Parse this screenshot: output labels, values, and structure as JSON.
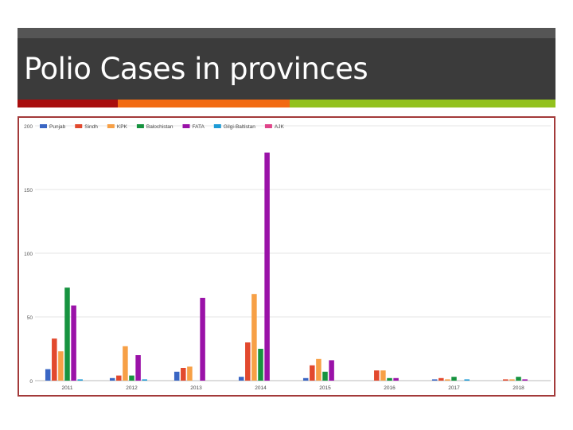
{
  "slide": {
    "title": "Polio Cases in provinces",
    "accent_colors": [
      "#a80d0d",
      "#f26a12",
      "#92c11d"
    ]
  },
  "chart_data": {
    "type": "bar",
    "title": "",
    "xlabel": "",
    "ylabel": "",
    "ylim": [
      0,
      200
    ],
    "yticks": [
      0,
      50,
      100,
      150,
      200
    ],
    "grid": true,
    "legend_position": "top-left",
    "categories": [
      "2011",
      "2012",
      "2013",
      "2014",
      "2015",
      "2016",
      "2017",
      "2018"
    ],
    "series": [
      {
        "name": "Punjab",
        "color": "#3a66c4",
        "values": [
          9,
          2,
          7,
          3,
          2,
          0,
          1,
          0
        ]
      },
      {
        "name": "Sindh",
        "color": "#e2492e",
        "values": [
          33,
          4,
          10,
          30,
          12,
          8,
          2,
          1
        ]
      },
      {
        "name": "KPK",
        "color": "#f7a046",
        "values": [
          23,
          27,
          11,
          68,
          17,
          8,
          1,
          1
        ]
      },
      {
        "name": "Balochistan",
        "color": "#16933f",
        "values": [
          73,
          4,
          0,
          25,
          7,
          2,
          3,
          3
        ]
      },
      {
        "name": "FATA",
        "color": "#9a12a8",
        "values": [
          59,
          20,
          65,
          179,
          16,
          2,
          0,
          1
        ]
      },
      {
        "name": "Gilgi-Baltistan",
        "color": "#1e9bd6",
        "values": [
          1,
          1,
          0,
          0,
          0,
          0,
          1,
          0
        ]
      },
      {
        "name": "AJK",
        "color": "#e0458a",
        "values": [
          0,
          0,
          0,
          0,
          0,
          0,
          0,
          0
        ]
      }
    ]
  }
}
